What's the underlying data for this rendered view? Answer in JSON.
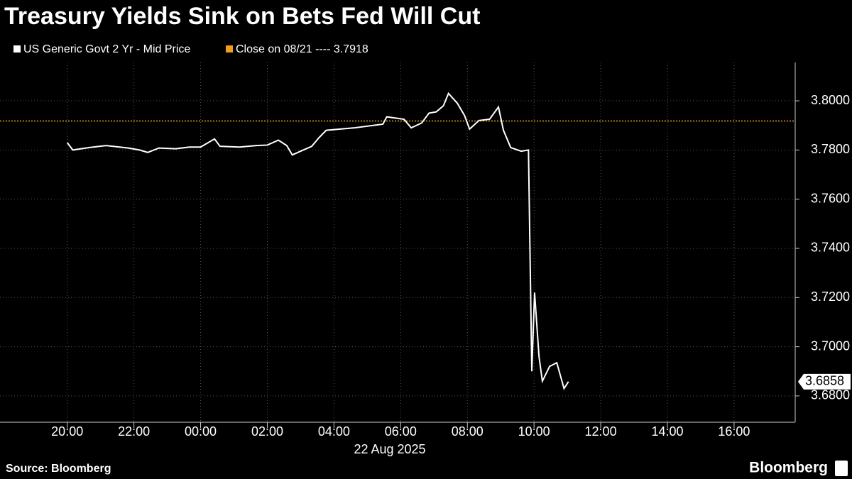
{
  "chart_data": {
    "type": "line",
    "title": "Treasury Yields Sink on Bets Fed Will Cut",
    "x_label": "22 Aug 2025",
    "source": "Source: Bloomberg",
    "brand": "Bloomberg",
    "x": [
      "2025-08-21T20:00",
      "2025-08-21T20:10",
      "2025-08-21T20:40",
      "2025-08-21T21:10",
      "2025-08-21T21:50",
      "2025-08-21T22:10",
      "2025-08-21T22:25",
      "2025-08-21T22:45",
      "2025-08-21T23:15",
      "2025-08-21T23:40",
      "2025-08-22T00:00",
      "2025-08-22T00:25",
      "2025-08-22T00:35",
      "2025-08-22T01:10",
      "2025-08-22T01:40",
      "2025-08-22T02:00",
      "2025-08-22T02:20",
      "2025-08-22T02:35",
      "2025-08-22T02:45",
      "2025-08-22T03:00",
      "2025-08-22T03:20",
      "2025-08-22T03:33",
      "2025-08-22T03:46",
      "2025-08-22T04:37",
      "2025-08-22T05:28",
      "2025-08-22T05:35",
      "2025-08-22T06:06",
      "2025-08-22T06:19",
      "2025-08-22T06:38",
      "2025-08-22T06:51",
      "2025-08-22T07:04",
      "2025-08-22T07:17",
      "2025-08-22T07:26",
      "2025-08-22T07:42",
      "2025-08-22T07:55",
      "2025-08-22T08:04",
      "2025-08-22T08:21",
      "2025-08-22T08:40",
      "2025-08-22T08:56",
      "2025-08-22T09:05",
      "2025-08-22T09:18",
      "2025-08-22T09:37",
      "2025-08-22T09:50",
      "2025-08-22T09:56",
      "2025-08-22T10:01",
      "2025-08-22T10:09",
      "2025-08-22T10:15",
      "2025-08-22T10:28",
      "2025-08-22T10:41",
      "2025-08-22T10:54",
      "2025-08-22T11:02"
    ],
    "series": [
      {
        "name": "US Generic Govt 2 Yr - Mid Price",
        "color": "#ffffff",
        "values": [
          3.783,
          3.78,
          3.781,
          3.7818,
          3.7808,
          3.78,
          3.779,
          3.7808,
          3.7805,
          3.7812,
          3.7812,
          3.7845,
          3.7815,
          3.7812,
          3.7818,
          3.782,
          3.784,
          3.7818,
          3.778,
          3.7795,
          3.7815,
          3.785,
          3.788,
          3.789,
          3.7905,
          3.7935,
          3.7925,
          3.789,
          3.791,
          3.795,
          3.7955,
          3.798,
          3.803,
          3.799,
          3.794,
          3.7885,
          3.792,
          3.7925,
          3.7975,
          3.788,
          3.781,
          3.7795,
          3.78,
          3.69,
          3.722,
          3.696,
          3.686,
          3.692,
          3.6935,
          3.683,
          3.6858
        ]
      }
    ],
    "reference_line": {
      "name": "Close on 08/21 ---- 3.7918",
      "value": 3.7918,
      "color": "#f39c1f"
    },
    "xlim": [
      "2025-08-21T17:59",
      "2025-08-22T17:50"
    ],
    "xticks": [
      {
        "value": "2025-08-21T20:00",
        "label": "20:00"
      },
      {
        "value": "2025-08-21T22:00",
        "label": "22:00"
      },
      {
        "value": "2025-08-22T00:00",
        "label": "00:00"
      },
      {
        "value": "2025-08-22T02:00",
        "label": "02:00"
      },
      {
        "value": "2025-08-22T04:00",
        "label": "04:00"
      },
      {
        "value": "2025-08-22T06:00",
        "label": "06:00"
      },
      {
        "value": "2025-08-22T08:00",
        "label": "08:00"
      },
      {
        "value": "2025-08-22T10:00",
        "label": "10:00"
      },
      {
        "value": "2025-08-22T12:00",
        "label": "12:00"
      },
      {
        "value": "2025-08-22T14:00",
        "label": "14:00"
      },
      {
        "value": "2025-08-22T16:00",
        "label": "16:00"
      }
    ],
    "ylim": [
      3.6693,
      3.8156
    ],
    "yticks": [
      {
        "value": 3.68,
        "label": "3.6800"
      },
      {
        "value": 3.7,
        "label": "3.7000"
      },
      {
        "value": 3.72,
        "label": "3.7200"
      },
      {
        "value": 3.74,
        "label": "3.7400"
      },
      {
        "value": 3.76,
        "label": "3.7600"
      },
      {
        "value": 3.78,
        "label": "3.7800"
      },
      {
        "value": 3.8,
        "label": "3.8000"
      }
    ],
    "grid": true,
    "y_axis_side": "right"
  }
}
